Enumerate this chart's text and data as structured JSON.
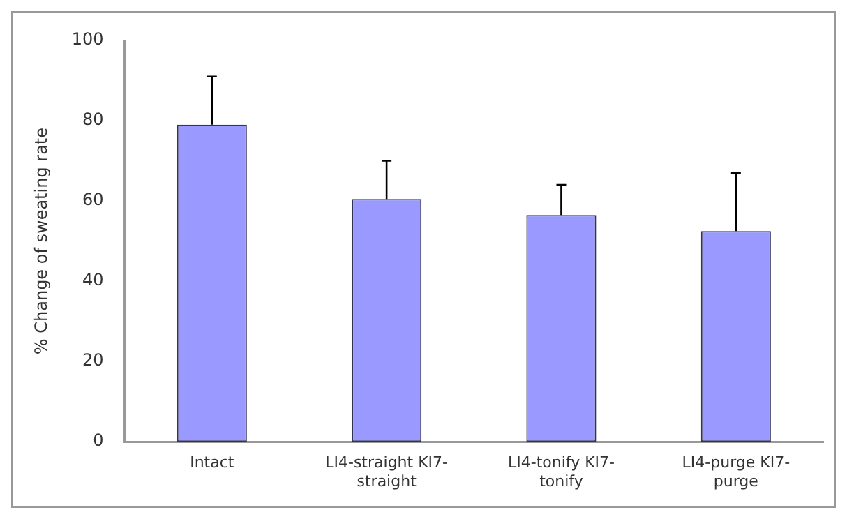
{
  "chart_data": {
    "type": "bar",
    "ylabel": "% Change of sweating rate",
    "categories": [
      "Intact",
      "LI4-straight KI7-straight",
      "LI4-tonify KI7-tonify",
      "LI4-purge KI7-purge"
    ],
    "values": [
      79,
      60.5,
      56.5,
      52.5
    ],
    "errors": [
      [
        79,
        91
      ],
      [
        60.5,
        70
      ],
      [
        56.5,
        64
      ],
      [
        52.5,
        67
      ]
    ],
    "color": "#9999ff",
    "ylim": [
      0,
      100
    ],
    "yticks": [
      0,
      20,
      40,
      60,
      80,
      100
    ],
    "grid": false,
    "legend": false
  }
}
